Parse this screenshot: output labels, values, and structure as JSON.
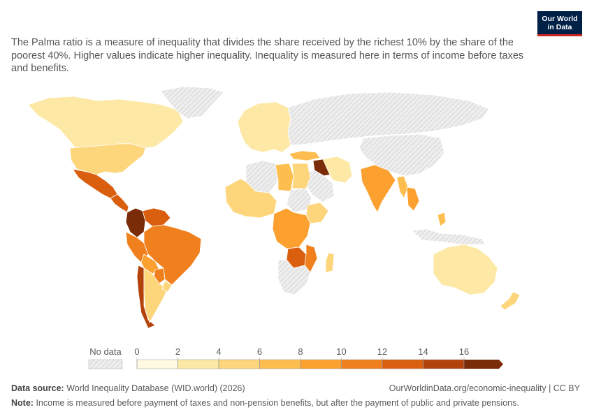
{
  "logo": {
    "line1": "Our World",
    "line2": "in Data"
  },
  "subtitle": "The Palma ratio is a measure of inequality that divides the share received by the richest 10% by the share of the poorest 40%. Higher values indicate higher inequality. Inequality is measured here in terms of income before taxes and benefits.",
  "colors": {
    "no_data_fill": "#eeeeee",
    "no_data_hatch": "#cfcfcf",
    "border": "#ffffff",
    "scale": [
      "#fef9e0",
      "#fde9a5",
      "#fdd57a",
      "#fdbd4f",
      "#fca02f",
      "#f0801e",
      "#d95f0e",
      "#b2410a",
      "#7a2b07"
    ]
  },
  "legend": {
    "no_data_label": "No data",
    "ticks": [
      "0",
      "2",
      "4",
      "6",
      "8",
      "10",
      "12",
      "14",
      "16"
    ]
  },
  "regions": [
    {
      "name": "Canada",
      "bin": 1
    },
    {
      "name": "United States",
      "bin": 2
    },
    {
      "name": "Mexico",
      "bin": 6
    },
    {
      "name": "Central America",
      "bin": 6
    },
    {
      "name": "Colombia",
      "bin": 8
    },
    {
      "name": "Venezuela",
      "bin": 6
    },
    {
      "name": "Brazil",
      "bin": 5
    },
    {
      "name": "Peru",
      "bin": 5
    },
    {
      "name": "Bolivia",
      "bin": 4
    },
    {
      "name": "Chile",
      "bin": 7
    },
    {
      "name": "Argentina",
      "bin": 2
    },
    {
      "name": "Paraguay",
      "bin": 5
    },
    {
      "name": "Uruguay",
      "bin": 2
    },
    {
      "name": "Greenland",
      "bin": -1
    },
    {
      "name": "Russia",
      "bin": -1
    },
    {
      "name": "Europe",
      "bin": 1
    },
    {
      "name": "Turkey",
      "bin": 3
    },
    {
      "name": "Iraq",
      "bin": 8
    },
    {
      "name": "Iran",
      "bin": 1
    },
    {
      "name": "Saudi Arabia",
      "bin": -1
    },
    {
      "name": "India",
      "bin": 4
    },
    {
      "name": "China",
      "bin": -1
    },
    {
      "name": "Myanmar",
      "bin": 3
    },
    {
      "name": "Thailand",
      "bin": 4
    },
    {
      "name": "Philippines",
      "bin": 3
    },
    {
      "name": "Indonesia",
      "bin": -1
    },
    {
      "name": "Australia",
      "bin": 1
    },
    {
      "name": "New Zealand",
      "bin": 2
    },
    {
      "name": "West Africa",
      "bin": 2
    },
    {
      "name": "Central Africa",
      "bin": 4
    },
    {
      "name": "Egypt",
      "bin": 2
    },
    {
      "name": "Sudan",
      "bin": -1
    },
    {
      "name": "Ethiopia",
      "bin": 2
    },
    {
      "name": "Zambia",
      "bin": 6
    },
    {
      "name": "Mozambique",
      "bin": 5
    },
    {
      "name": "Madagascar",
      "bin": 2
    },
    {
      "name": "Southern Africa",
      "bin": -1
    },
    {
      "name": "Libya",
      "bin": 3
    },
    {
      "name": "Algeria",
      "bin": -1
    }
  ],
  "footer": {
    "source_label": "Data source:",
    "source_text": "World Inequality Database (WID.world) (2026)",
    "url": "OurWorldinData.org/economic-inequality | CC BY",
    "note_label": "Note:",
    "note_text": "Income is measured before payment of taxes and non-pension benefits, but after the payment of public and private pensions."
  }
}
